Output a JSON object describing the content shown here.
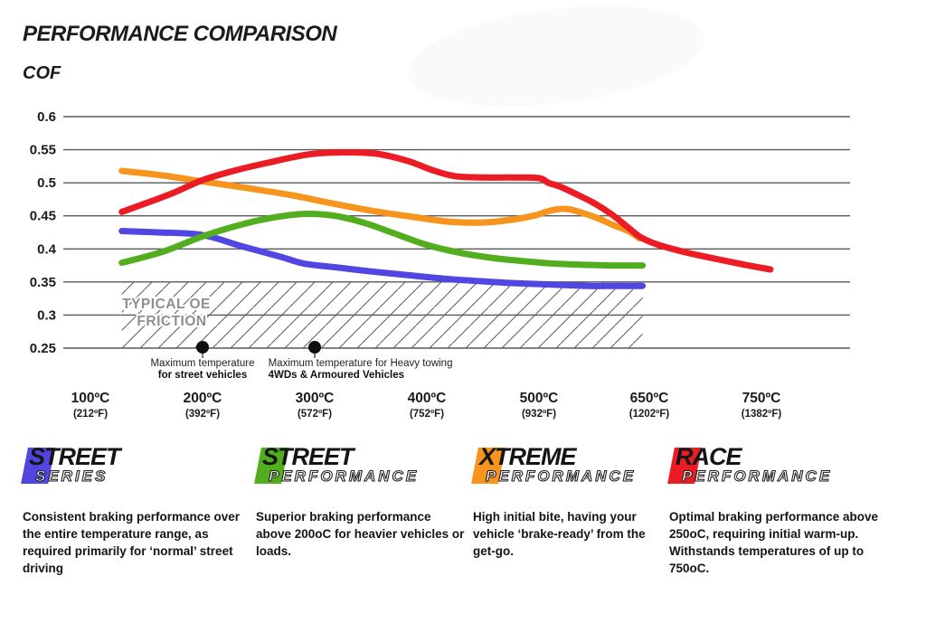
{
  "header": {
    "title": "PERFORMANCE COMPARISON",
    "y_axis_title": "COF"
  },
  "chart_data": {
    "type": "line",
    "title": "PERFORMANCE COMPARISON",
    "ylabel": "COF",
    "ylim": [
      0.25,
      0.6
    ],
    "grid": true,
    "y_ticks": [
      "0.6",
      "0.55",
      "0.5",
      "0.45",
      "0.4",
      "0.35",
      "0.3",
      "0.25"
    ],
    "y_tick_values": [
      0.6,
      0.55,
      0.5,
      0.45,
      0.4,
      0.35,
      0.3,
      0.25
    ],
    "x_ticks": [
      {
        "temp": 100,
        "label": "100ºC",
        "sub": "(212ºF)"
      },
      {
        "temp": 200,
        "label": "200ºC",
        "sub": "(392ºF)"
      },
      {
        "temp": 300,
        "label": "300ºC",
        "sub": "(572ºF)"
      },
      {
        "temp": 400,
        "label": "400ºC",
        "sub": "(752ºF)"
      },
      {
        "temp": 500,
        "label": "500ºC",
        "sub": "(932ºF)"
      },
      {
        "temp": 650,
        "label": "650ºC",
        "sub": "(1202ºF)"
      },
      {
        "temp": 750,
        "label": "750ºC",
        "sub": "(1382ºF)"
      }
    ],
    "oe_band": {
      "label_line1": "TYPICAL OE",
      "label_line2": "FRICTION",
      "cof_from": 0.25,
      "cof_to": 0.35,
      "temp_from": 128,
      "temp_to": 641
    },
    "markers": [
      {
        "temp": 200,
        "cof": 0.25,
        "line1": "Maximum temperature",
        "line2": "for street vehicles",
        "anchor": "middle",
        "text_temp": 200
      },
      {
        "temp": 300,
        "cof": 0.25,
        "line1": "Maximum temperature for Heavy towing",
        "line2": "4WDs & Armoured Vehicles",
        "anchor": "start",
        "text_temp": 265
      }
    ],
    "series": [
      {
        "name": "Street Series",
        "color": "#5246e3",
        "points": [
          [
            128,
            0.427
          ],
          [
            160,
            0.425
          ],
          [
            200,
            0.421
          ],
          [
            235,
            0.404
          ],
          [
            270,
            0.388
          ],
          [
            290,
            0.378
          ],
          [
            320,
            0.372
          ],
          [
            350,
            0.366
          ],
          [
            385,
            0.36
          ],
          [
            415,
            0.355
          ],
          [
            450,
            0.351
          ],
          [
            480,
            0.348
          ],
          [
            520,
            0.346
          ],
          [
            570,
            0.344
          ],
          [
            605,
            0.344
          ],
          [
            641,
            0.344
          ]
        ]
      },
      {
        "name": "Street Performance",
        "color": "#52ae1e",
        "points": [
          [
            128,
            0.379
          ],
          [
            165,
            0.396
          ],
          [
            200,
            0.419
          ],
          [
            235,
            0.437
          ],
          [
            265,
            0.448
          ],
          [
            292,
            0.453
          ],
          [
            318,
            0.45
          ],
          [
            345,
            0.439
          ],
          [
            370,
            0.424
          ],
          [
            400,
            0.406
          ],
          [
            430,
            0.394
          ],
          [
            460,
            0.386
          ],
          [
            490,
            0.381
          ],
          [
            520,
            0.378
          ],
          [
            560,
            0.376
          ],
          [
            600,
            0.375
          ],
          [
            641,
            0.375
          ]
        ]
      },
      {
        "name": "Xtreme Performance",
        "color": "#f7941d",
        "points": [
          [
            128,
            0.518
          ],
          [
            165,
            0.511
          ],
          [
            200,
            0.502
          ],
          [
            240,
            0.492
          ],
          [
            280,
            0.481
          ],
          [
            315,
            0.469
          ],
          [
            350,
            0.458
          ],
          [
            385,
            0.449
          ],
          [
            415,
            0.442
          ],
          [
            432,
            0.44
          ],
          [
            452,
            0.44
          ],
          [
            475,
            0.444
          ],
          [
            495,
            0.45
          ],
          [
            512,
            0.456
          ],
          [
            527,
            0.46
          ],
          [
            542,
            0.46
          ],
          [
            562,
            0.454
          ],
          [
            582,
            0.446
          ],
          [
            602,
            0.436
          ],
          [
            622,
            0.427
          ],
          [
            637,
            0.416
          ]
        ]
      },
      {
        "name": "Race Performance",
        "color": "#ec1c24",
        "points": [
          [
            128,
            0.456
          ],
          [
            170,
            0.482
          ],
          [
            200,
            0.504
          ],
          [
            230,
            0.519
          ],
          [
            260,
            0.531
          ],
          [
            295,
            0.543
          ],
          [
            325,
            0.546
          ],
          [
            355,
            0.544
          ],
          [
            383,
            0.533
          ],
          [
            405,
            0.519
          ],
          [
            425,
            0.51
          ],
          [
            450,
            0.508
          ],
          [
            475,
            0.508
          ],
          [
            500,
            0.507
          ],
          [
            515,
            0.5
          ],
          [
            531,
            0.494
          ],
          [
            550,
            0.484
          ],
          [
            575,
            0.47
          ],
          [
            600,
            0.452
          ],
          [
            620,
            0.434
          ],
          [
            638,
            0.418
          ],
          [
            655,
            0.408
          ],
          [
            675,
            0.398
          ],
          [
            695,
            0.39
          ],
          [
            715,
            0.383
          ],
          [
            735,
            0.376
          ],
          [
            758,
            0.369
          ]
        ]
      }
    ]
  },
  "legend": [
    {
      "line1_initial": "S",
      "line1_rest": "TREET",
      "line2": "SERIES",
      "color": "#5246e3",
      "description": "Consistent braking performance over the entire temperature range, as required primarily for ‘normal’ street driving"
    },
    {
      "line1_initial": "S",
      "line1_rest": "TREET",
      "line2": "PERFORMANCE",
      "color": "#52ae1e",
      "description": "Superior braking performance above 200oC for heavier vehicles or loads."
    },
    {
      "line1_initial": "X",
      "line1_rest": "TREME",
      "line2": "PERFORMANCE",
      "color": "#f7941d",
      "description": "High initial bite, having your vehicle ‘brake-ready’ from the get-go."
    },
    {
      "line1_initial": "R",
      "line1_rest": "ACE",
      "line2": "PERFORMANCE",
      "color": "#ec1c24",
      "description": "Optimal braking performance above 250oC, requiring initial warm-up. Withstands temperatures of up to 750oC."
    }
  ]
}
